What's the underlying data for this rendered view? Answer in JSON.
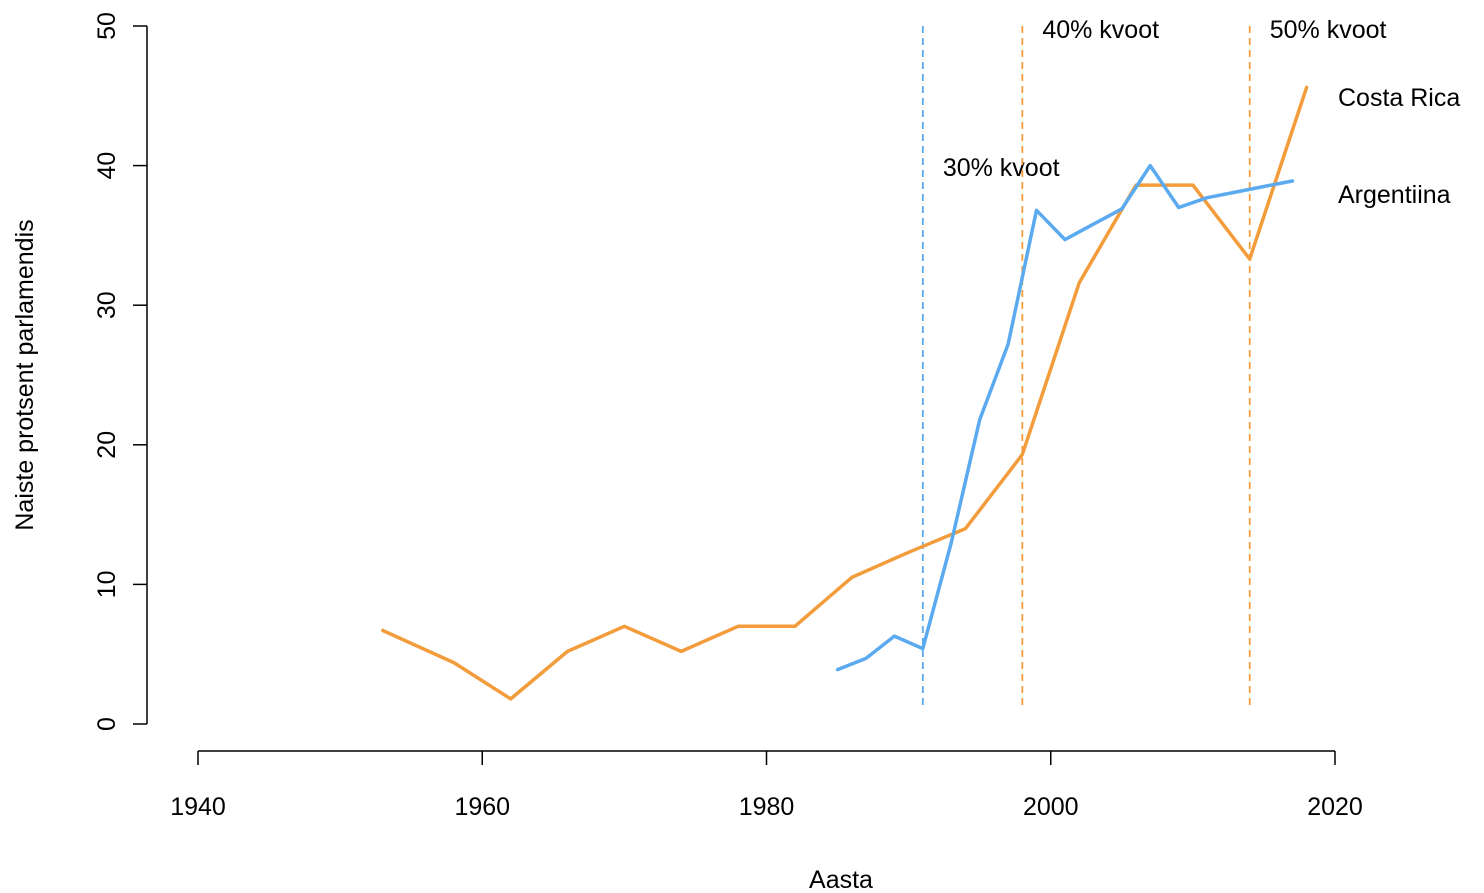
{
  "chart_data": {
    "type": "line",
    "title": "",
    "xlabel": "Aasta",
    "ylabel": "Naiste protsent parlamendis",
    "xlim": [
      1940,
      2020
    ],
    "ylim": [
      0,
      50
    ],
    "xticks": [
      "1940",
      "1960",
      "1980",
      "2000",
      "2020"
    ],
    "yticks": [
      "0",
      "10",
      "20",
      "30",
      "40",
      "50"
    ],
    "grid": false,
    "series": [
      {
        "name": "Costa Rica",
        "color": "#F39C3C",
        "x": [
          1953,
          1958,
          1962,
          1966,
          1970,
          1974,
          1978,
          1982,
          1986,
          1990,
          1994,
          1998,
          2002,
          2006,
          2010,
          2014,
          2018
        ],
        "y": [
          6.7,
          4.4,
          1.8,
          5.2,
          7.0,
          5.2,
          7.0,
          7.0,
          10.5,
          12.3,
          14.0,
          19.3,
          31.6,
          38.6,
          38.6,
          33.3,
          45.6
        ]
      },
      {
        "name": "Argentiina",
        "color": "#5BAAF0",
        "x": [
          1985,
          1987,
          1989,
          1991,
          1993,
          1995,
          1997,
          1999,
          2001,
          2003,
          2005,
          2007,
          2009,
          2011,
          2013,
          2015,
          2017
        ],
        "y": [
          3.9,
          4.7,
          6.3,
          5.4,
          13.0,
          21.8,
          27.2,
          36.8,
          34.7,
          35.8,
          36.9,
          40.0,
          37.0,
          37.7,
          38.1,
          38.5,
          38.9
        ]
      }
    ],
    "vlines": [
      {
        "x": 1991,
        "label": "30% kvoot",
        "color": "#5BAAF0"
      },
      {
        "x": 1998,
        "label": "40% kvoot",
        "color": "#F39C3C"
      },
      {
        "x": 2014,
        "label": "50% kvoot",
        "color": "#F39C3C"
      }
    ]
  }
}
